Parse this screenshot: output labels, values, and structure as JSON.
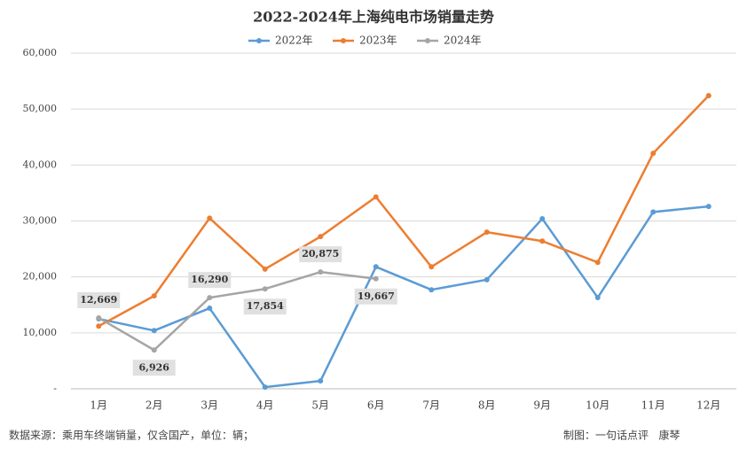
{
  "chart_data": {
    "type": "line",
    "title": "2022-2024年上海纯电市场销量走势",
    "categories": [
      "1月",
      "2月",
      "3月",
      "4月",
      "5月",
      "6月",
      "7月",
      "8月",
      "9月",
      "10月",
      "11月",
      "12月"
    ],
    "series": [
      {
        "name": "2022年",
        "color": "#5b9bd5",
        "values": [
          12500,
          10400,
          14400,
          300,
          1400,
          21800,
          17700,
          19500,
          30400,
          16300,
          31600,
          32600
        ]
      },
      {
        "name": "2023年",
        "color": "#ed7d31",
        "values": [
          11200,
          16600,
          30500,
          21400,
          27200,
          34300,
          21800,
          28000,
          26400,
          22600,
          42100,
          52400
        ]
      },
      {
        "name": "2024年",
        "color": "#a5a5a5",
        "values": [
          12669,
          6926,
          16290,
          17854,
          20875,
          19667,
          null,
          null,
          null,
          null,
          null,
          null
        ],
        "value_labels": [
          "12,669",
          "6,926",
          "16,290",
          "17,854",
          "20,875",
          "19,667",
          null,
          null,
          null,
          null,
          null,
          null
        ]
      }
    ],
    "ylim": [
      0,
      60000
    ],
    "yticks": [
      {
        "value": 0,
        "label": "-"
      },
      {
        "value": 10000,
        "label": "10,000"
      },
      {
        "value": 20000,
        "label": "20,000"
      },
      {
        "value": 30000,
        "label": "30,000"
      },
      {
        "value": 40000,
        "label": "40,000"
      },
      {
        "value": 50000,
        "label": "50,000"
      },
      {
        "value": 60000,
        "label": "60,000"
      }
    ],
    "grid": true,
    "legend": "top",
    "source": "数据来源：乘用车终端销量，仅含国产，单位：辆；",
    "credit": "制图：一句话点评   康琴"
  }
}
